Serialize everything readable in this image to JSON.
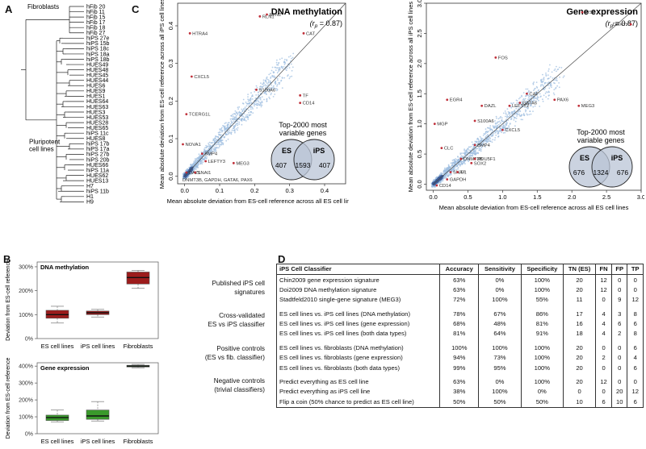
{
  "panels": {
    "a": "A",
    "b": "B",
    "c": "C",
    "d": "D"
  },
  "dendrogram": {
    "group_fibroblasts": "Fibroblasts",
    "group_pluripotent_line1": "Pluripotent",
    "group_pluripotent_line2": "cell lines",
    "leaves": [
      "hFib 20",
      "hFib 11",
      "hFib 15",
      "hFib 17",
      "hFib 18",
      "hFib 27",
      "hiPS 27e",
      "hiPS 15b",
      "hiPS 18c",
      "hiPS 18a",
      "hiPS 18b",
      "HUES49",
      "HUES48",
      "HUES45",
      "HUES44",
      "HUES6",
      "HUES9",
      "HUES1",
      "HUES64",
      "HUES63",
      "HUES3",
      "HUES53",
      "HUES28",
      "HUES65",
      "hiPS 11c",
      "HUES8",
      "hiPS 17b",
      "hiPS 17a",
      "hiPS 27b",
      "hiPS 20b",
      "HUES66",
      "hiPS 11a",
      "HUES62",
      "HUES13",
      "H7",
      "hiPS 11b",
      "H1",
      "H9"
    ]
  },
  "boxplots": [
    {
      "title": "DNA methylation",
      "ylabel": "Deviation from ES-cell reference",
      "ticks": [
        "0%",
        "100%",
        "200%",
        "300%"
      ],
      "tick_values": [
        0,
        100,
        200,
        300
      ],
      "ylim": [
        0,
        320
      ],
      "categories": [
        "ES cell lines",
        "iPS cell lines",
        "Fibroblasts"
      ],
      "colors": [
        "#9c1c1c",
        "#9c1c1c",
        "#9c1c1c"
      ],
      "boxes": [
        {
          "min": 65,
          "q1": 85,
          "median": 100,
          "q3": 118,
          "max": 135
        },
        {
          "min": 90,
          "q1": 100,
          "median": 108,
          "q3": 115,
          "max": 122
        },
        {
          "min": 210,
          "q1": 228,
          "median": 255,
          "q3": 278,
          "max": 285
        }
      ]
    },
    {
      "title": "Gene expression",
      "ylabel": "Deviation from ES-cell reference",
      "ticks": [
        "0%",
        "100%",
        "200%",
        "300%",
        "400%"
      ],
      "tick_values": [
        0,
        100,
        200,
        300,
        400
      ],
      "ylim": [
        0,
        420
      ],
      "categories": [
        "ES cell lines",
        "iPS cell lines",
        "Fibroblasts"
      ],
      "colors": [
        "#3a9a2c",
        "#3a9a2c",
        "#3a9a2c"
      ],
      "boxes": [
        {
          "min": 70,
          "q1": 78,
          "median": 95,
          "q3": 110,
          "max": 140
        },
        {
          "min": 75,
          "q1": 85,
          "median": 105,
          "q3": 140,
          "max": 190
        },
        {
          "min": 390,
          "q1": 395,
          "median": 400,
          "q3": 405,
          "max": 410
        }
      ]
    }
  ],
  "chart_data": [
    {
      "type": "scatter",
      "title": "DNA methylation",
      "annotation": "(r",
      "annotation_sub": "p",
      "annotation_end": "= 0.87)",
      "xlabel": "Mean absolute deviation from ES-cell reference across all ES cell lines",
      "ylabel": "Mean absolute deviation from ES-cell reference across all iPS cell lines",
      "xlim": [
        -0.02,
        0.46
      ],
      "ylim": [
        -0.02,
        0.46
      ],
      "xticks": [
        0.0,
        0.1,
        0.2,
        0.3,
        0.4
      ],
      "xtick_labels": [
        "0.0",
        "0.1",
        "0.2",
        "0.3",
        "0.4"
      ],
      "yticks": [
        0.0,
        0.1,
        0.2,
        0.3,
        0.4
      ],
      "ytick_labels": [
        "0.0",
        "0.1",
        "0.2",
        "0.3",
        "0.4"
      ],
      "point_color": "#9dbde0",
      "highlight_color": "#c0303a",
      "labeled_points": [
        {
          "label": "RLN1",
          "x": 0.215,
          "y": 0.425
        },
        {
          "label": "RLN2",
          "x": 0.235,
          "y": 0.43
        },
        {
          "label": "CAT",
          "x": 0.34,
          "y": 0.38
        },
        {
          "label": "HTRA4",
          "x": 0.015,
          "y": 0.38
        },
        {
          "label": "CXCL5",
          "x": 0.02,
          "y": 0.265
        },
        {
          "label": "S100A6",
          "x": 0.205,
          "y": 0.23
        },
        {
          "label": "TF",
          "x": 0.33,
          "y": 0.215
        },
        {
          "label": "CD14",
          "x": 0.33,
          "y": 0.195
        },
        {
          "label": "TCERG1L",
          "x": 0.005,
          "y": 0.165
        },
        {
          "label": "NOVA1",
          "x": -0.005,
          "y": 0.085
        },
        {
          "label": "BMP4",
          "x": 0.05,
          "y": 0.06
        },
        {
          "label": "LEFTY3",
          "x": 0.06,
          "y": 0.04
        },
        {
          "label": "MEG3",
          "x": 0.14,
          "y": 0.035
        },
        {
          "label": "DAZL",
          "x": 0.005,
          "y": 0.01
        },
        {
          "label": "SNAI1",
          "x": 0.03,
          "y": 0.01
        }
      ],
      "bottom_note": "DNMT3B, GAPDH, GATA6, PAX6",
      "venn": {
        "title": "Top-2000 most variable genes",
        "left": "ES",
        "right": "iPS",
        "only_left": "407",
        "both": "1593",
        "only_right": "407"
      }
    },
    {
      "type": "scatter",
      "title": "Gene expression",
      "annotation": "(r",
      "annotation_sub": "p",
      "annotation_end": "= 0.87)",
      "xlabel": "Mean absolute deviation from ES-cell reference across all ES cell lines",
      "ylabel": "Mean absolute deviation from ES-cell reference across all iPS cell lines",
      "xlim": [
        -0.1,
        3.0
      ],
      "ylim": [
        -0.1,
        3.0
      ],
      "xticks": [
        0.0,
        0.5,
        1.0,
        1.5,
        2.0,
        2.5,
        3.0
      ],
      "xtick_labels": [
        "0.0",
        "0.5",
        "1.0",
        "1.5",
        "2.0",
        "2.5",
        "3.0"
      ],
      "yticks": [
        0.0,
        0.5,
        1.0,
        1.5,
        2.0,
        2.5,
        3.0
      ],
      "ytick_labels": [
        "0.0",
        "0.5",
        "1.0",
        "1.5",
        "2.0",
        "2.5",
        "3.0"
      ],
      "point_color": "#9dbde0",
      "highlight_color": "#c0303a",
      "labeled_points": [
        {
          "label": "XIST",
          "x": 2.15,
          "y": 2.85
        },
        {
          "label": "DDX3Y",
          "x": 2.85,
          "y": 2.65
        },
        {
          "label": "FOS",
          "x": 0.9,
          "y": 2.1
        },
        {
          "label": "CAT",
          "x": 1.35,
          "y": 1.5
        },
        {
          "label": "PAX6",
          "x": 1.75,
          "y": 1.4
        },
        {
          "label": "EGR4",
          "x": 0.2,
          "y": 1.4
        },
        {
          "label": "GATA6",
          "x": 1.25,
          "y": 1.35
        },
        {
          "label": "LEFTY2",
          "x": 1.1,
          "y": 1.3
        },
        {
          "label": "DAZL",
          "x": 0.7,
          "y": 1.3
        },
        {
          "label": "MEG3",
          "x": 2.1,
          "y": 1.3
        },
        {
          "label": "MGP",
          "x": 0.02,
          "y": 1.0
        },
        {
          "label": "S100A6",
          "x": 0.6,
          "y": 1.05
        },
        {
          "label": "CXCL5",
          "x": 1.0,
          "y": 0.9
        },
        {
          "label": "CLC",
          "x": 0.12,
          "y": 0.6
        },
        {
          "label": "BMP4",
          "x": 0.6,
          "y": 0.65
        },
        {
          "label": "DNMT3B",
          "x": 0.4,
          "y": 0.42
        },
        {
          "label": "POU5F1",
          "x": 0.6,
          "y": 0.42
        },
        {
          "label": "SOX2",
          "x": 0.55,
          "y": 0.35
        },
        {
          "label": "SNAI1",
          "x": 0.25,
          "y": 0.2
        },
        {
          "label": "TF",
          "x": 0.35,
          "y": 0.2
        },
        {
          "label": "GAPDH",
          "x": 0.2,
          "y": 0.08
        },
        {
          "label": "CD14",
          "x": 0.05,
          "y": -0.02
        }
      ],
      "venn": {
        "title": "Top-2000 most variable genes",
        "left": "ES",
        "right": "iPS",
        "only_left": "676",
        "both": "1324",
        "only_right": "676"
      }
    }
  ],
  "table": {
    "headers": [
      "iPS Cell Classifier",
      "Accuracy",
      "Sensitivity",
      "Specificity",
      "TN (ES)",
      "FN",
      "FP",
      "TP"
    ],
    "groups": [
      {
        "label": [
          "Published iPS cell",
          "signatures"
        ],
        "rows": [
          [
            "Chin2009 gene expression signature",
            "63%",
            "0%",
            "100%",
            "20",
            "12",
            "0",
            "0"
          ],
          [
            "Doi2009 DNA methylation signature",
            "63%",
            "0%",
            "100%",
            "20",
            "12",
            "0",
            "0"
          ],
          [
            "Stadtfeld2010 single-gene signature (MEG3)",
            "72%",
            "100%",
            "55%",
            "11",
            "0",
            "9",
            "12"
          ]
        ]
      },
      {
        "label": [
          "Cross-validated",
          "ES vs iPS classifier"
        ],
        "rows": [
          [
            "ES cell lines vs. iPS cell lines (DNA methylation)",
            "78%",
            "67%",
            "86%",
            "17",
            "4",
            "3",
            "8"
          ],
          [
            "ES cell lines vs. iPS cell lines (gene expression)",
            "68%",
            "48%",
            "81%",
            "16",
            "4",
            "6",
            "6"
          ],
          [
            "ES cell lines vs. iPS cell lines (both data types)",
            "81%",
            "64%",
            "91%",
            "18",
            "4",
            "2",
            "8"
          ]
        ]
      },
      {
        "label": [
          "Positive controls",
          "(ES vs fib. classifier)"
        ],
        "rows": [
          [
            "ES cell lines vs. fibroblasts (DNA methylation)",
            "100%",
            "100%",
            "100%",
            "20",
            "0",
            "0",
            "6"
          ],
          [
            "ES cell lines vs. fibroblasts (gene expression)",
            "94%",
            "73%",
            "100%",
            "20",
            "2",
            "0",
            "4"
          ],
          [
            "ES cell lines vs. fibroblasts (both data types)",
            "99%",
            "95%",
            "100%",
            "20",
            "0",
            "0",
            "6"
          ]
        ]
      },
      {
        "label": [
          "Negative controls",
          "(trivial classifiers)"
        ],
        "rows": [
          [
            "Predict everything as ES cell line",
            "63%",
            "0%",
            "100%",
            "20",
            "12",
            "0",
            "0"
          ],
          [
            "Predict everything as iPS cell line",
            "38%",
            "100%",
            "0%",
            "0",
            "0",
            "20",
            "12"
          ],
          [
            "Flip a coin (50% chance to predict as ES cell line)",
            "50%",
            "50%",
            "50%",
            "10",
            "6",
            "10",
            "6"
          ]
        ]
      }
    ]
  }
}
